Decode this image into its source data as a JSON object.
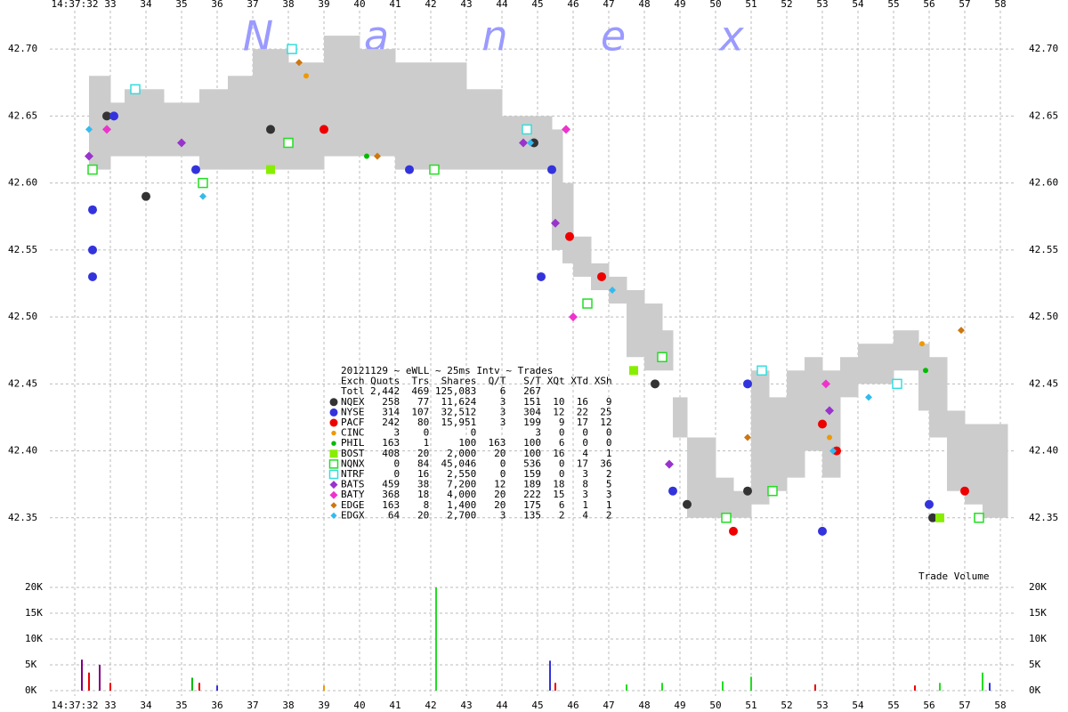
{
  "chart_data": [
    {
      "type": "band",
      "title": "20121129 ~ eWLL ~ 25ms Intv ~ Trades",
      "watermark": [
        "N",
        "a",
        "n",
        "e",
        "x"
      ],
      "grid": true,
      "xlim": [
        31.3,
        58.4
      ],
      "xticks": [
        {
          "value": 32,
          "label": "14:37:32"
        },
        33,
        34,
        35,
        36,
        37,
        38,
        39,
        40,
        41,
        42,
        43,
        44,
        45,
        46,
        47,
        48,
        49,
        50,
        51,
        52,
        53,
        54,
        55,
        56,
        57,
        58
      ],
      "ylim": [
        42.31,
        42.73
      ],
      "yticks": [
        42.35,
        {
          "value": 42.4,
          "label": "42.40"
        },
        42.45,
        {
          "value": 42.5,
          "label": "42.50"
        },
        42.55,
        {
          "value": 42.6,
          "label": "42.60"
        },
        42.65,
        {
          "value": 42.7,
          "label": "42.70"
        }
      ],
      "band": {
        "color": "#cccccc",
        "x": [
          32.4,
          33.0,
          33.4,
          34.5,
          35.5,
          36.3,
          37.0,
          38.0,
          39.0,
          40.0,
          41.0,
          42.0,
          43.0,
          44.0,
          45.0,
          45.4,
          45.7,
          46.0,
          46.5,
          47.0,
          47.5,
          48.0,
          48.5,
          48.8,
          49.2,
          50.0,
          50.5,
          51.0,
          51.5,
          52.0,
          52.5,
          53.0,
          53.5,
          54.0,
          55.0,
          55.7,
          56.0,
          56.5,
          57.0,
          57.5,
          58.0
        ],
        "high": [
          42.68,
          42.66,
          42.67,
          42.66,
          42.67,
          42.68,
          42.7,
          42.69,
          42.71,
          42.7,
          42.69,
          42.69,
          42.67,
          42.65,
          42.65,
          42.64,
          42.6,
          42.56,
          42.54,
          42.53,
          42.52,
          42.51,
          42.49,
          42.44,
          42.41,
          42.38,
          42.37,
          42.46,
          42.44,
          42.46,
          42.47,
          42.46,
          42.47,
          42.48,
          42.49,
          42.48,
          42.47,
          42.43,
          42.42,
          42.42,
          42.42
        ],
        "low": [
          42.61,
          42.62,
          42.62,
          42.62,
          42.61,
          42.61,
          42.61,
          42.61,
          42.62,
          42.62,
          42.61,
          42.61,
          42.61,
          42.61,
          42.61,
          42.55,
          42.54,
          42.53,
          42.52,
          42.51,
          42.47,
          42.46,
          42.46,
          42.41,
          42.35,
          42.35,
          42.35,
          42.36,
          42.37,
          42.38,
          42.4,
          42.38,
          42.44,
          42.45,
          42.46,
          42.43,
          42.41,
          42.37,
          42.36,
          42.35,
          42.35
        ]
      },
      "table_header": "Exch Quots  Trs  Shares  Q/T   S/T XQt XTd XSh",
      "total": {
        "name": "Totl",
        "stats": "2,442  469 125,083    6   267"
      },
      "series": [
        {
          "name": "NQEX",
          "color": "#333333",
          "marker": "circle",
          "stats": "  258   77  11,624    3   151  10  16   9",
          "x": [
            32.9,
            34.0,
            37.5,
            44.9,
            48.3,
            49.2,
            50.9,
            56.1
          ],
          "values": [
            42.65,
            42.59,
            42.64,
            42.63,
            42.45,
            42.36,
            42.37,
            42.35
          ]
        },
        {
          "name": "NYSE",
          "color": "#3333dd",
          "marker": "circle",
          "stats": "  314  107  32,512    3   304  12  22  25",
          "x": [
            32.5,
            32.5,
            32.5,
            33.1,
            35.4,
            41.4,
            45.4,
            45.1,
            48.8,
            50.9,
            53.0,
            56.0
          ],
          "values": [
            42.58,
            42.55,
            42.53,
            42.65,
            42.61,
            42.61,
            42.61,
            42.53,
            42.37,
            42.45,
            42.34,
            42.36
          ]
        },
        {
          "name": "PACF",
          "color": "#ee0000",
          "marker": "circle",
          "stats": "  242   80  15,951    3   199   9  17  12",
          "x": [
            39.0,
            45.9,
            46.8,
            50.5,
            53.0,
            53.4,
            57.0
          ],
          "values": [
            42.64,
            42.56,
            42.53,
            42.34,
            42.42,
            42.4,
            42.37
          ]
        },
        {
          "name": "CINC",
          "color": "#ee9900",
          "marker": "dot",
          "stats": "    3    0       0          3   0   0   0",
          "x": [
            38.5,
            53.2,
            55.8
          ],
          "values": [
            42.68,
            42.41,
            42.48
          ]
        },
        {
          "name": "PHIL",
          "color": "#00bb00",
          "marker": "dot",
          "stats": "  163    1     100  163   100   6   0   0",
          "x": [
            40.2,
            55.9
          ],
          "values": [
            42.62,
            42.46
          ]
        },
        {
          "name": "BOST",
          "color": "#88ee00",
          "marker": "square",
          "stats": "  408   20   2,000   20   100  16   4   1",
          "x": [
            37.5,
            47.7,
            56.3
          ],
          "values": [
            42.61,
            42.46,
            42.35
          ]
        },
        {
          "name": "NQNX",
          "color": "#22dd22",
          "marker": "hollow-square",
          "stats": "    0   84  45,046    0   536   0  17  36",
          "x": [
            32.5,
            35.6,
            38.0,
            42.1,
            46.4,
            48.5,
            50.3,
            51.6,
            57.4
          ],
          "values": [
            42.61,
            42.6,
            42.63,
            42.61,
            42.51,
            42.47,
            42.35,
            42.37,
            42.35
          ]
        },
        {
          "name": "NTRF",
          "color": "#33dddd",
          "marker": "hollow-square",
          "stats": "    0   16   2,550    0   159   0   3   2",
          "x": [
            33.7,
            38.1,
            44.7,
            51.3,
            55.1
          ],
          "values": [
            42.67,
            42.7,
            42.64,
            42.46,
            42.45
          ]
        },
        {
          "name": "BATS",
          "color": "#9933cc",
          "marker": "diamond",
          "stats": "  459   38   7,200   12   189  18   8   5",
          "x": [
            32.4,
            35.0,
            44.6,
            45.5,
            48.7,
            53.2
          ],
          "values": [
            42.62,
            42.63,
            42.63,
            42.57,
            42.39,
            42.43
          ]
        },
        {
          "name": "BATY",
          "color": "#ee33cc",
          "marker": "diamond",
          "stats": "  368   18   4,000   20   222  15   3   3",
          "x": [
            32.9,
            45.8,
            46.0,
            53.1
          ],
          "values": [
            42.64,
            42.64,
            42.5,
            42.45
          ]
        },
        {
          "name": "EDGE",
          "color": "#cc7711",
          "marker": "small-diamond",
          "stats": "  163    8   1,400   20   175   6   1   1",
          "x": [
            38.3,
            40.5,
            50.9,
            56.9
          ],
          "values": [
            42.69,
            42.62,
            42.41,
            42.49
          ]
        },
        {
          "name": "EDGX",
          "color": "#33bbee",
          "marker": "small-diamond",
          "stats": "   64   20   2,700    3   135   2   4   2",
          "x": [
            32.4,
            35.6,
            44.8,
            47.1,
            53.3,
            54.3
          ],
          "values": [
            42.64,
            42.59,
            42.63,
            42.52,
            42.4,
            42.44
          ]
        }
      ]
    },
    {
      "type": "bar",
      "label": "Trade Volume",
      "xlim": [
        31.3,
        58.4
      ],
      "ylim": [
        0,
        20000
      ],
      "yticks": [
        {
          "value": 0,
          "label": "0K"
        },
        {
          "value": 5000,
          "label": "5K"
        },
        {
          "value": 10000,
          "label": "10K"
        },
        {
          "value": 15000,
          "label": "15K"
        },
        {
          "value": 20000,
          "label": "20K"
        }
      ],
      "x": [
        32.2,
        32.4,
        32.7,
        33.0,
        35.3,
        35.5,
        36.0,
        39.0,
        42.15,
        45.35,
        45.5,
        47.5,
        48.5,
        50.2,
        51.0,
        52.8,
        55.6,
        56.3,
        57.5,
        57.7
      ],
      "values": [
        6000,
        3500,
        5000,
        1500,
        2500,
        1500,
        1000,
        1000,
        20000,
        5800,
        1500,
        1200,
        1500,
        1800,
        2700,
        1200,
        1000,
        1500,
        3500,
        1500
      ],
      "colors": [
        "#800080",
        "#ee0000",
        "#800080",
        "#ee0000",
        "#00bb00",
        "#ee0000",
        "#3333dd",
        "#ee9900",
        "#22dd22",
        "#3333dd",
        "#ee0000",
        "#22dd22",
        "#22dd22",
        "#22dd22",
        "#22dd22",
        "#ee0000",
        "#ee0000",
        "#22dd22",
        "#22dd22",
        "#3333dd"
      ]
    }
  ]
}
